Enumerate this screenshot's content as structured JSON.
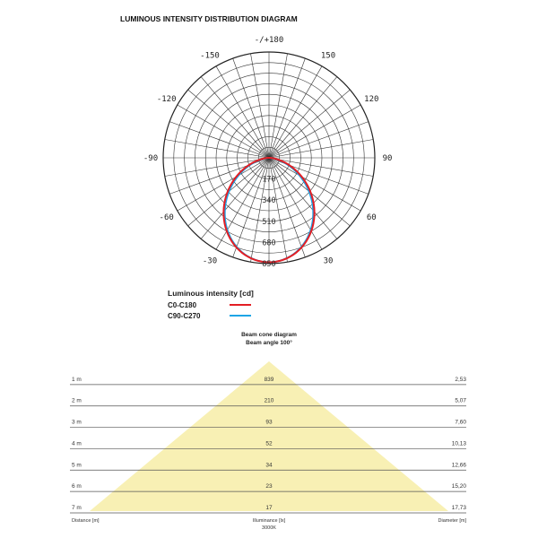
{
  "chart_data": [
    {
      "type": "polar",
      "title": "LUMINOUS INTENSITY DISTRIBUTION DIAGRAM",
      "angle_labels": [
        "-/+180",
        "150",
        "120",
        "90",
        "60",
        "30",
        "-30",
        "-60",
        "-90",
        "-120",
        "-150"
      ],
      "radial_labels": [
        "170",
        "340",
        "510",
        "680",
        "850"
      ],
      "rmax": 850,
      "unit_label": "Luminous intensity [cd]",
      "series": [
        {
          "name": "C0-C180",
          "color": "#e31e24",
          "peak_cd": 839,
          "beam_angle_deg": 100
        },
        {
          "name": "C90-C270",
          "color": "#1ea5e6",
          "peak_cd": 839,
          "beam_angle_deg": 100
        }
      ]
    },
    {
      "type": "table",
      "title": "Beam cone diagram",
      "subtitle": "Beam angle 100°",
      "color": "#f8f0b4",
      "distance_header": "Distance [m]",
      "illuminance_header": "Illuminance [lx]",
      "illuminance_sub": "3000K",
      "diameter_header": "Diameter [m]",
      "rows": [
        {
          "distance": "1 m",
          "illuminance": "839",
          "diameter": "2,53"
        },
        {
          "distance": "2 m",
          "illuminance": "210",
          "diameter": "5,07"
        },
        {
          "distance": "3 m",
          "illuminance": "93",
          "diameter": "7,60"
        },
        {
          "distance": "4 m",
          "illuminance": "52",
          "diameter": "10,13"
        },
        {
          "distance": "5 m",
          "illuminance": "34",
          "diameter": "12,66"
        },
        {
          "distance": "6 m",
          "illuminance": "23",
          "diameter": "15,20"
        },
        {
          "distance": "7 m",
          "illuminance": "17",
          "diameter": "17,73"
        }
      ]
    }
  ]
}
